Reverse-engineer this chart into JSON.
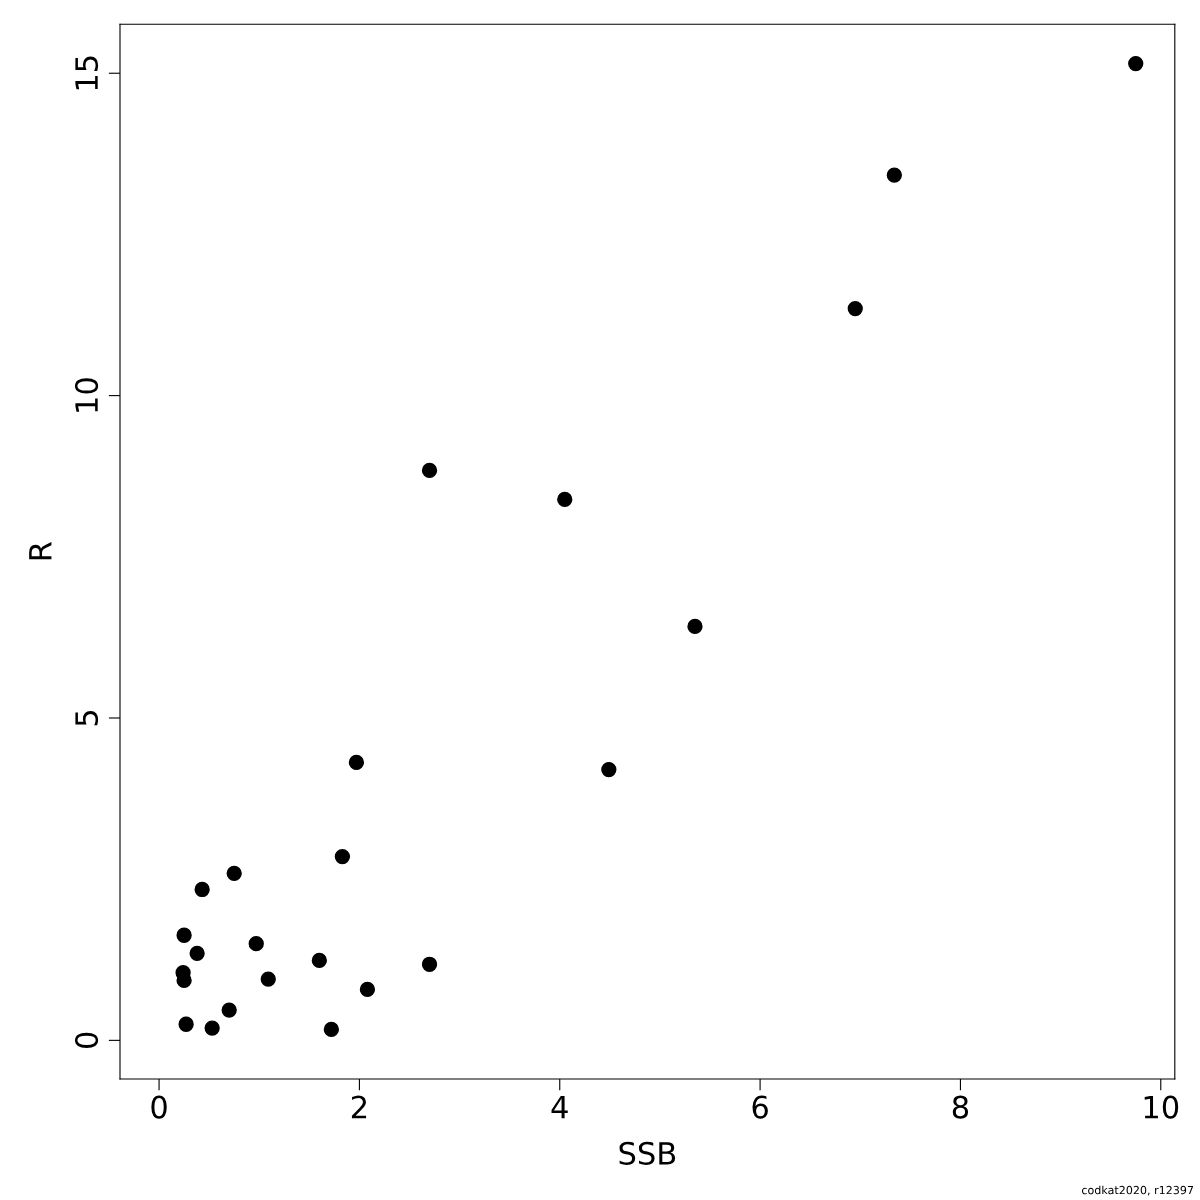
{
  "chart_data": {
    "type": "scatter",
    "xlabel": "SSB",
    "ylabel": "R",
    "annotations": [
      "codkat2020, r12397"
    ],
    "x": [
      9.75,
      7.34,
      6.95,
      2.7,
      4.05,
      5.35,
      1.97,
      4.49,
      1.83,
      0.75,
      0.43,
      0.25,
      0.97,
      0.38,
      1.6,
      2.7,
      0.24,
      0.25,
      1.09,
      2.08,
      0.7,
      0.27,
      0.53,
      1.72
    ],
    "series": [
      {
        "color": "#000000",
        "values": [
          15.15,
          13.42,
          11.35,
          8.84,
          8.39,
          6.42,
          4.31,
          4.2,
          2.85,
          2.59,
          2.34,
          1.63,
          1.5,
          1.35,
          1.24,
          1.18,
          1.05,
          0.93,
          0.95,
          0.79,
          0.47,
          0.25,
          0.19,
          0.17
        ]
      }
    ],
    "xlim": [
      -0.39,
      10.14
    ],
    "ylim": [
      -0.6,
      15.76
    ],
    "xticks": [
      0,
      2,
      4,
      6,
      8,
      10
    ],
    "yticks": [
      0,
      5,
      10,
      15
    ],
    "marker": "circle",
    "grid": false,
    "legend": false
  }
}
